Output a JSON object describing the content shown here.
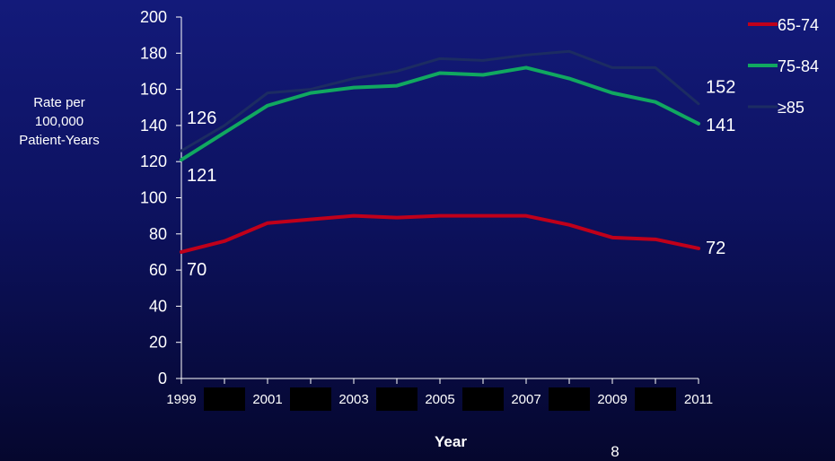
{
  "chart_data": {
    "type": "line",
    "xlabel": "Year",
    "ylabel_lines": [
      "Rate per",
      "100,000",
      "Patient-Years"
    ],
    "x": [
      1999,
      2000,
      2001,
      2002,
      2003,
      2004,
      2005,
      2006,
      2007,
      2008,
      2009,
      2010,
      2011
    ],
    "x_tick_labels": [
      "1999",
      "2001",
      "2003",
      "2005",
      "2007",
      "2009",
      "2011"
    ],
    "y_ticks": [
      "0",
      "20",
      "40",
      "60",
      "80",
      "100",
      "120",
      "140",
      "160",
      "180",
      "200"
    ],
    "ylim": [
      0,
      200
    ],
    "grid": false,
    "legend_position": "right",
    "series": [
      {
        "name": "65-74",
        "color": "#c0001a",
        "values": [
          70,
          76,
          86,
          88,
          90,
          89,
          90,
          90,
          90,
          85,
          78,
          77,
          72
        ],
        "start_label": "70",
        "end_label": "72"
      },
      {
        "name": "75-84",
        "color": "#11a860",
        "values": [
          121,
          136,
          151,
          158,
          161,
          162,
          169,
          168,
          172,
          166,
          158,
          153,
          141
        ],
        "start_label": "121",
        "end_label": "141"
      },
      {
        "name": "≥85",
        "color": "#1c2c62",
        "values": [
          126,
          140,
          158,
          160,
          166,
          170,
          177,
          176,
          179,
          181,
          172,
          172,
          152
        ],
        "start_label": "126",
        "end_label": "152"
      }
    ]
  },
  "page_number": "8"
}
